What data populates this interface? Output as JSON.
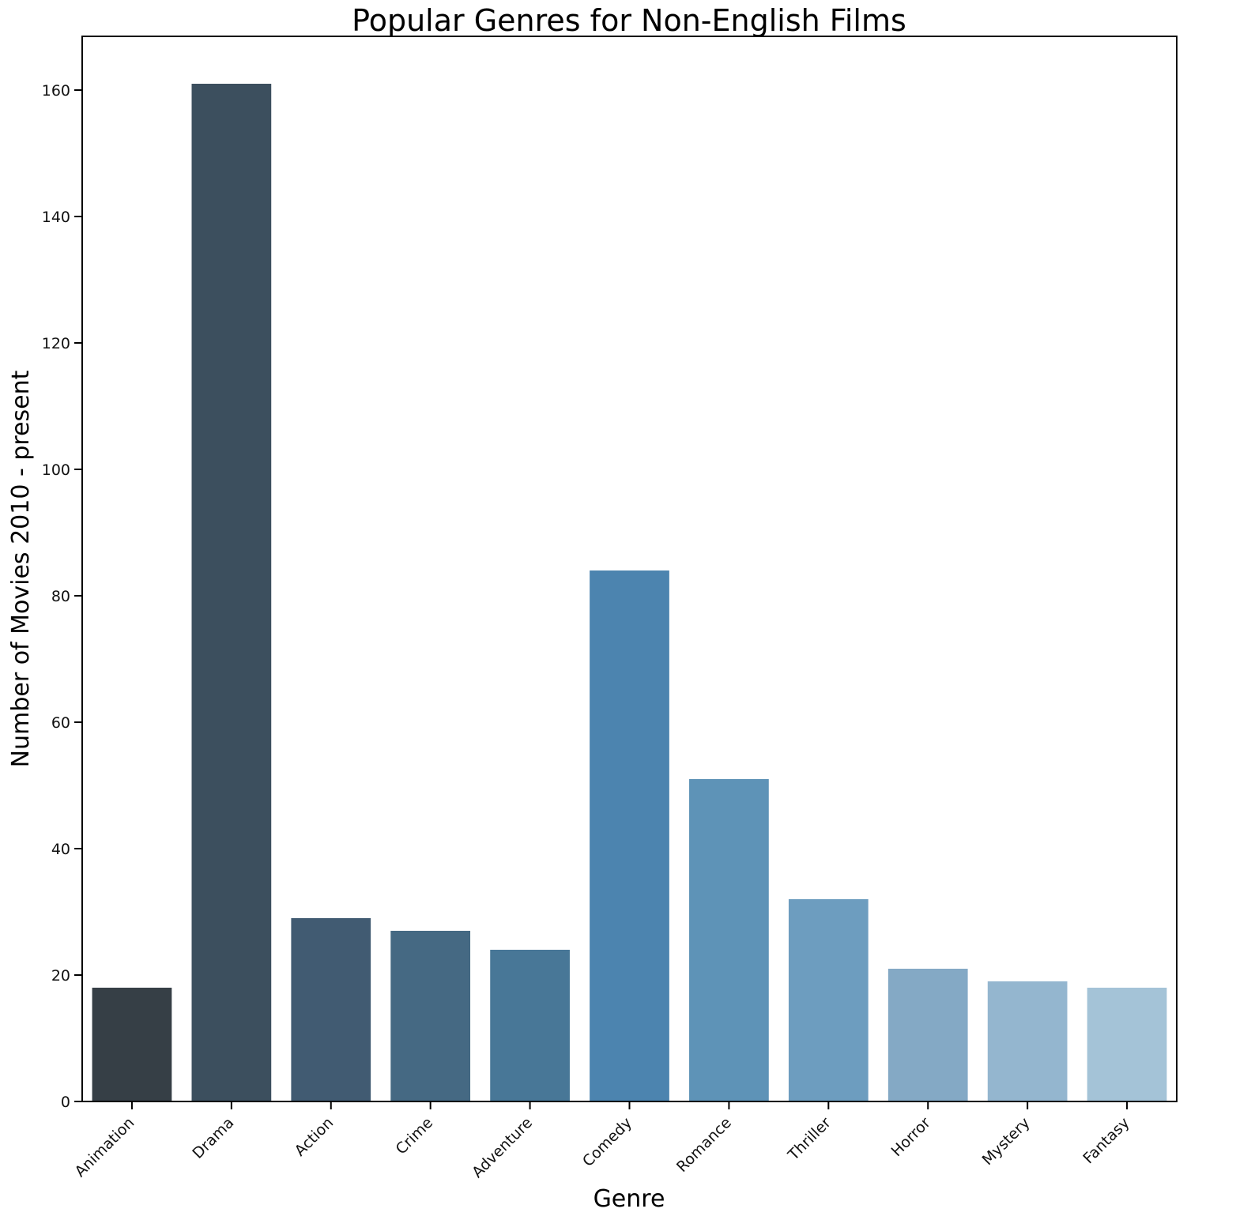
{
  "chart_data": {
    "type": "bar",
    "title": "Popular Genres for Non-English Films",
    "xlabel": "Genre",
    "ylabel": "Number of Movies 2010 - present",
    "categories": [
      "Animation",
      "Drama",
      "Action",
      "Crime",
      "Adventure",
      "Comedy",
      "Romance",
      "Thriller",
      "Horror",
      "Mystery",
      "Fantasy"
    ],
    "values": [
      18,
      161,
      29,
      27,
      24,
      84,
      51,
      32,
      21,
      19,
      18
    ],
    "colors": [
      "#363f46",
      "#3c4f5e",
      "#415b72",
      "#456983",
      "#487797",
      "#4c84af",
      "#5e93b7",
      "#6d9dbf",
      "#84a9c5",
      "#94b6cf",
      "#a4c3d7"
    ],
    "ylim": [
      0,
      168.5
    ],
    "yticks": [
      0,
      20,
      40,
      60,
      80,
      100,
      120,
      140,
      160
    ],
    "grid": false,
    "legend": "none"
  }
}
